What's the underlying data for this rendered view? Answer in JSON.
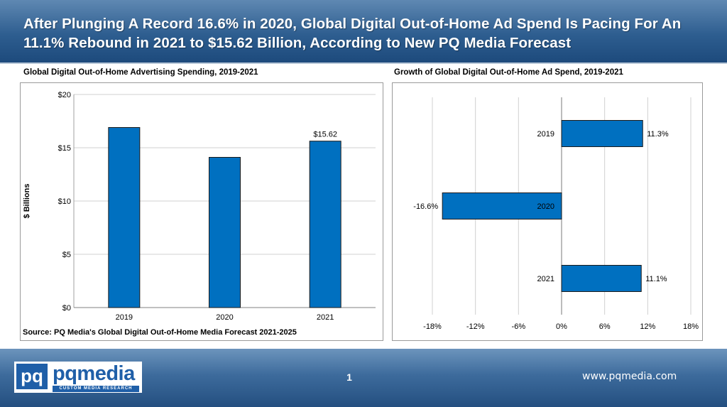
{
  "header": {
    "title": "After Plunging A Record 16.6% in 2020, Global Digital Out-of-Home Ad Spend Is Pacing For An 11.1% Rebound in 2021 to $15.62 Billion, According to New PQ Media Forecast"
  },
  "footer": {
    "logo_mark": "pq",
    "logo_name": "pqmedia",
    "logo_tagline": "CUSTOM MEDIA RESEARCH",
    "page_number": "1",
    "website": "www.pqmedia.com"
  },
  "colors": {
    "bar": "#0070c0",
    "header": "#2e5e90",
    "footer": "#3d6b9c"
  },
  "chart_data": [
    {
      "type": "bar",
      "title": "Global Digital Out-of-Home Advertising Spending, 2019-2021",
      "ylabel": "$ Billions",
      "categories": [
        "2019",
        "2020",
        "2021"
      ],
      "values": [
        16.9,
        14.1,
        15.62
      ],
      "data_labels": [
        "",
        "",
        "$15.62"
      ],
      "ylim": [
        0,
        20
      ],
      "yticks": [
        0,
        5,
        10,
        15,
        20
      ],
      "ytick_labels": [
        "$0",
        "$5",
        "$10",
        "$15",
        "$20"
      ],
      "grid": true,
      "source": "Source: PQ Media's Global Digital Out-of-Home Media Forecast 2021-2025"
    },
    {
      "type": "bar",
      "orientation": "horizontal",
      "title": "Growth of Global Digital Out-of-Home Ad Spend, 2019-2021",
      "categories": [
        "2019",
        "2020",
        "2021"
      ],
      "values": [
        11.3,
        -16.6,
        11.1
      ],
      "data_labels": [
        "11.3%",
        "-16.6%",
        "11.1%"
      ],
      "xlim": [
        -18,
        18
      ],
      "xticks": [
        -18,
        -12,
        -6,
        0,
        6,
        12,
        18
      ],
      "xtick_labels": [
        "-18%",
        "-12%",
        "-6%",
        "0%",
        "6%",
        "12%",
        "18%"
      ],
      "grid": true
    }
  ]
}
